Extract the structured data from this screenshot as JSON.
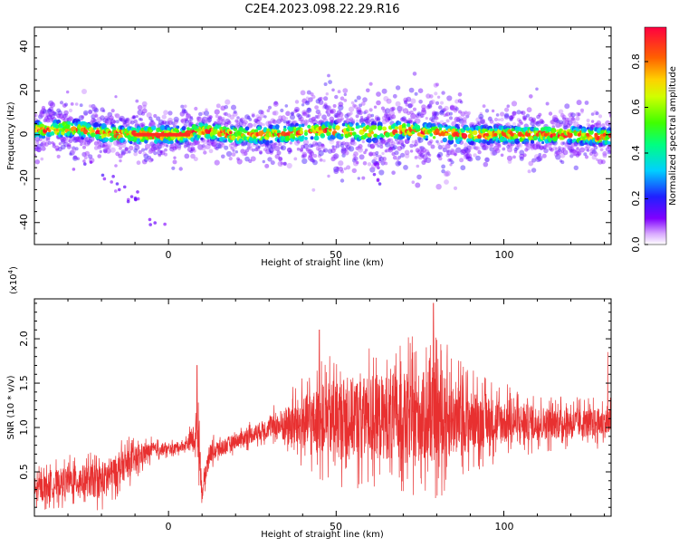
{
  "title": "C2E4.2023.098.22.29.R16",
  "chart_data": [
    {
      "type": "heatmap",
      "xlabel": "Height of straight line (km)",
      "ylabel": "Frequency (Hz)",
      "xlim": [
        -40,
        132
      ],
      "ylim": [
        -50,
        49
      ],
      "xticks": [
        "0",
        "50",
        "100"
      ],
      "yticks": [
        "40",
        "20",
        "0",
        "-20",
        "-40"
      ],
      "colorbar": {
        "label": "Normalized spectral amplitude",
        "ticks": [
          "0.0",
          "0.2",
          "0.4",
          "0.6",
          "0.8"
        ],
        "range": [
          0,
          0.95
        ]
      },
      "band": {
        "center_hz": 0,
        "peak_amplitude": 0.9,
        "ridge_x": [
          -40,
          -30,
          -20,
          -12,
          -5,
          0,
          5,
          10,
          20,
          30,
          40,
          50,
          60,
          70,
          80,
          90,
          100,
          110,
          120,
          132
        ],
        "ridge_y": [
          2,
          3,
          1,
          0,
          0,
          0,
          0,
          2,
          0,
          0,
          1,
          2,
          1,
          2,
          1,
          0,
          0,
          0,
          0,
          -1
        ]
      },
      "scatter_tail": [
        {
          "x": -17,
          "y": -20
        },
        {
          "x": -15,
          "y": -24
        },
        {
          "x": -12,
          "y": -27
        },
        {
          "x": -9,
          "y": -30
        },
        {
          "x": -4,
          "y": -40
        },
        {
          "x": -25,
          "y": -14
        },
        {
          "x": 62,
          "y": -20
        },
        {
          "x": 63,
          "y": -14
        }
      ]
    },
    {
      "type": "line",
      "xlabel": "Height of straight line (km)",
      "ylabel": "SNR (10 * v/v)",
      "scale_label": "(x10",
      "scale_exp": "4",
      "scale_close": ")",
      "xlim": [
        -40,
        132
      ],
      "ylim": [
        0,
        2.45
      ],
      "xticks": [
        "0",
        "50",
        "100"
      ],
      "yticks": [
        "0.5",
        "1.0",
        "1.5",
        "2.0"
      ],
      "color": "#e83030",
      "envelope": {
        "x": [
          -40,
          -30,
          -20,
          -12,
          -5,
          0,
          5,
          8,
          9,
          10,
          12,
          20,
          30,
          40,
          50,
          60,
          70,
          80,
          90,
          100,
          110,
          120,
          132
        ],
        "mean": [
          0.3,
          0.4,
          0.4,
          0.6,
          0.75,
          0.75,
          0.8,
          0.9,
          0.95,
          0.25,
          0.7,
          0.85,
          1.0,
          1.05,
          1.1,
          1.12,
          1.12,
          1.12,
          1.08,
          1.06,
          1.05,
          1.05,
          1.05
        ],
        "amplitude": [
          0.25,
          0.3,
          0.35,
          0.3,
          0.15,
          0.1,
          0.1,
          0.3,
          0.6,
          0.15,
          0.2,
          0.15,
          0.2,
          0.55,
          0.8,
          0.85,
          0.9,
          0.95,
          0.6,
          0.45,
          0.35,
          0.3,
          0.3
        ]
      },
      "peaks": [
        {
          "x": 8.5,
          "y": 1.7
        },
        {
          "x": 45,
          "y": 2.1
        },
        {
          "x": 79,
          "y": 2.4
        },
        {
          "x": 131,
          "y": 1.85
        }
      ]
    }
  ]
}
